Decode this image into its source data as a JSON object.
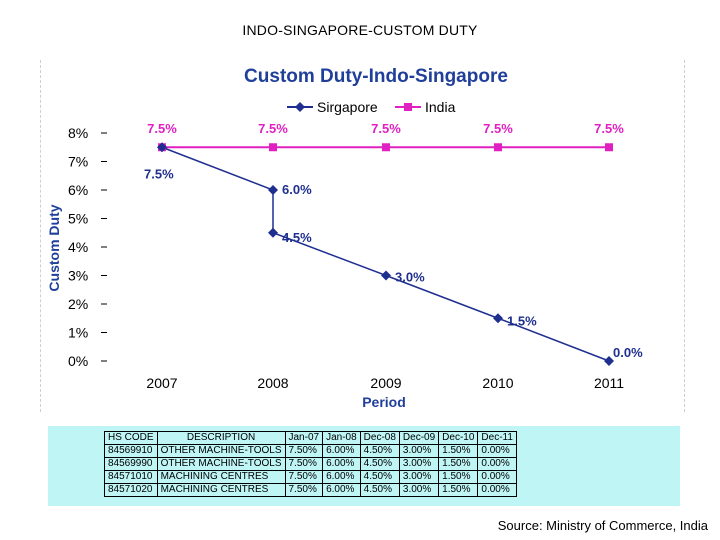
{
  "page": {
    "title": "INDO-SINGAPORE-CUSTOM DUTY",
    "source": "Source: Ministry of Commerce, India"
  },
  "colors": {
    "singapore": "#1f2f8f",
    "india": "#e020c0",
    "title": "#1f3f9a",
    "table_bg": "#bff5f5"
  },
  "chart_data": {
    "type": "line",
    "title": "Custom Duty-Indo-Singapore",
    "xlabel": "Period",
    "ylabel": "Custom Duty",
    "ylim": [
      0,
      8
    ],
    "yticks": [
      0,
      1,
      2,
      3,
      4,
      5,
      6,
      7,
      8
    ],
    "ytick_labels": [
      "0%",
      "1%",
      "2%",
      "3%",
      "4%",
      "5%",
      "6%",
      "7%",
      "8%"
    ],
    "categories": [
      "2007",
      "2008",
      "2009",
      "2010",
      "2011"
    ],
    "legend": {
      "position": "top",
      "entries": [
        "Sirgapore",
        "India"
      ]
    },
    "series": [
      {
        "name": "Sirgapore",
        "color": "#1f2f8f",
        "marker": "diamond",
        "points": [
          {
            "x": "2007",
            "y": 7.5,
            "label": "7.5%"
          },
          {
            "x": "2008",
            "y": 6.0,
            "label": "6.0%"
          },
          {
            "x": "2008",
            "y": 4.5,
            "label": "4.5%"
          },
          {
            "x": "2009",
            "y": 3.0,
            "label": "3.0%"
          },
          {
            "x": "2010",
            "y": 1.5,
            "label": "1.5%"
          },
          {
            "x": "2011",
            "y": 0.0,
            "label": "0.0%"
          }
        ]
      },
      {
        "name": "India",
        "color": "#e020c0",
        "marker": "square",
        "points": [
          {
            "x": "2007",
            "y": 7.5,
            "label": "7.5%"
          },
          {
            "x": "2008",
            "y": 7.5,
            "label": "7.5%"
          },
          {
            "x": "2009",
            "y": 7.5,
            "label": "7.5%"
          },
          {
            "x": "2010",
            "y": 7.5,
            "label": "7.5%"
          },
          {
            "x": "2011",
            "y": 7.5,
            "label": "7.5%"
          }
        ]
      }
    ]
  },
  "table": {
    "headers": [
      "HS CODE",
      "DESCRIPTION",
      "Jan-07",
      "Jan-08",
      "Dec-08",
      "Dec-09",
      "Dec-10",
      "Dec-11"
    ],
    "rows": [
      [
        "84569910",
        "OTHER MACHINE-TOOLS",
        "7.50%",
        "6.00%",
        "4.50%",
        "3.00%",
        "1.50%",
        "0.00%"
      ],
      [
        "84569990",
        "OTHER MACHINE-TOOLS",
        "7.50%",
        "6.00%",
        "4.50%",
        "3.00%",
        "1.50%",
        "0.00%"
      ],
      [
        "84571010",
        "MACHINING CENTRES",
        "7.50%",
        "6.00%",
        "4.50%",
        "3.00%",
        "1.50%",
        "0.00%"
      ],
      [
        "84571020",
        "MACHINING CENTRES",
        "7.50%",
        "6.00%",
        "4.50%",
        "3.00%",
        "1.50%",
        "0.00%"
      ]
    ]
  }
}
